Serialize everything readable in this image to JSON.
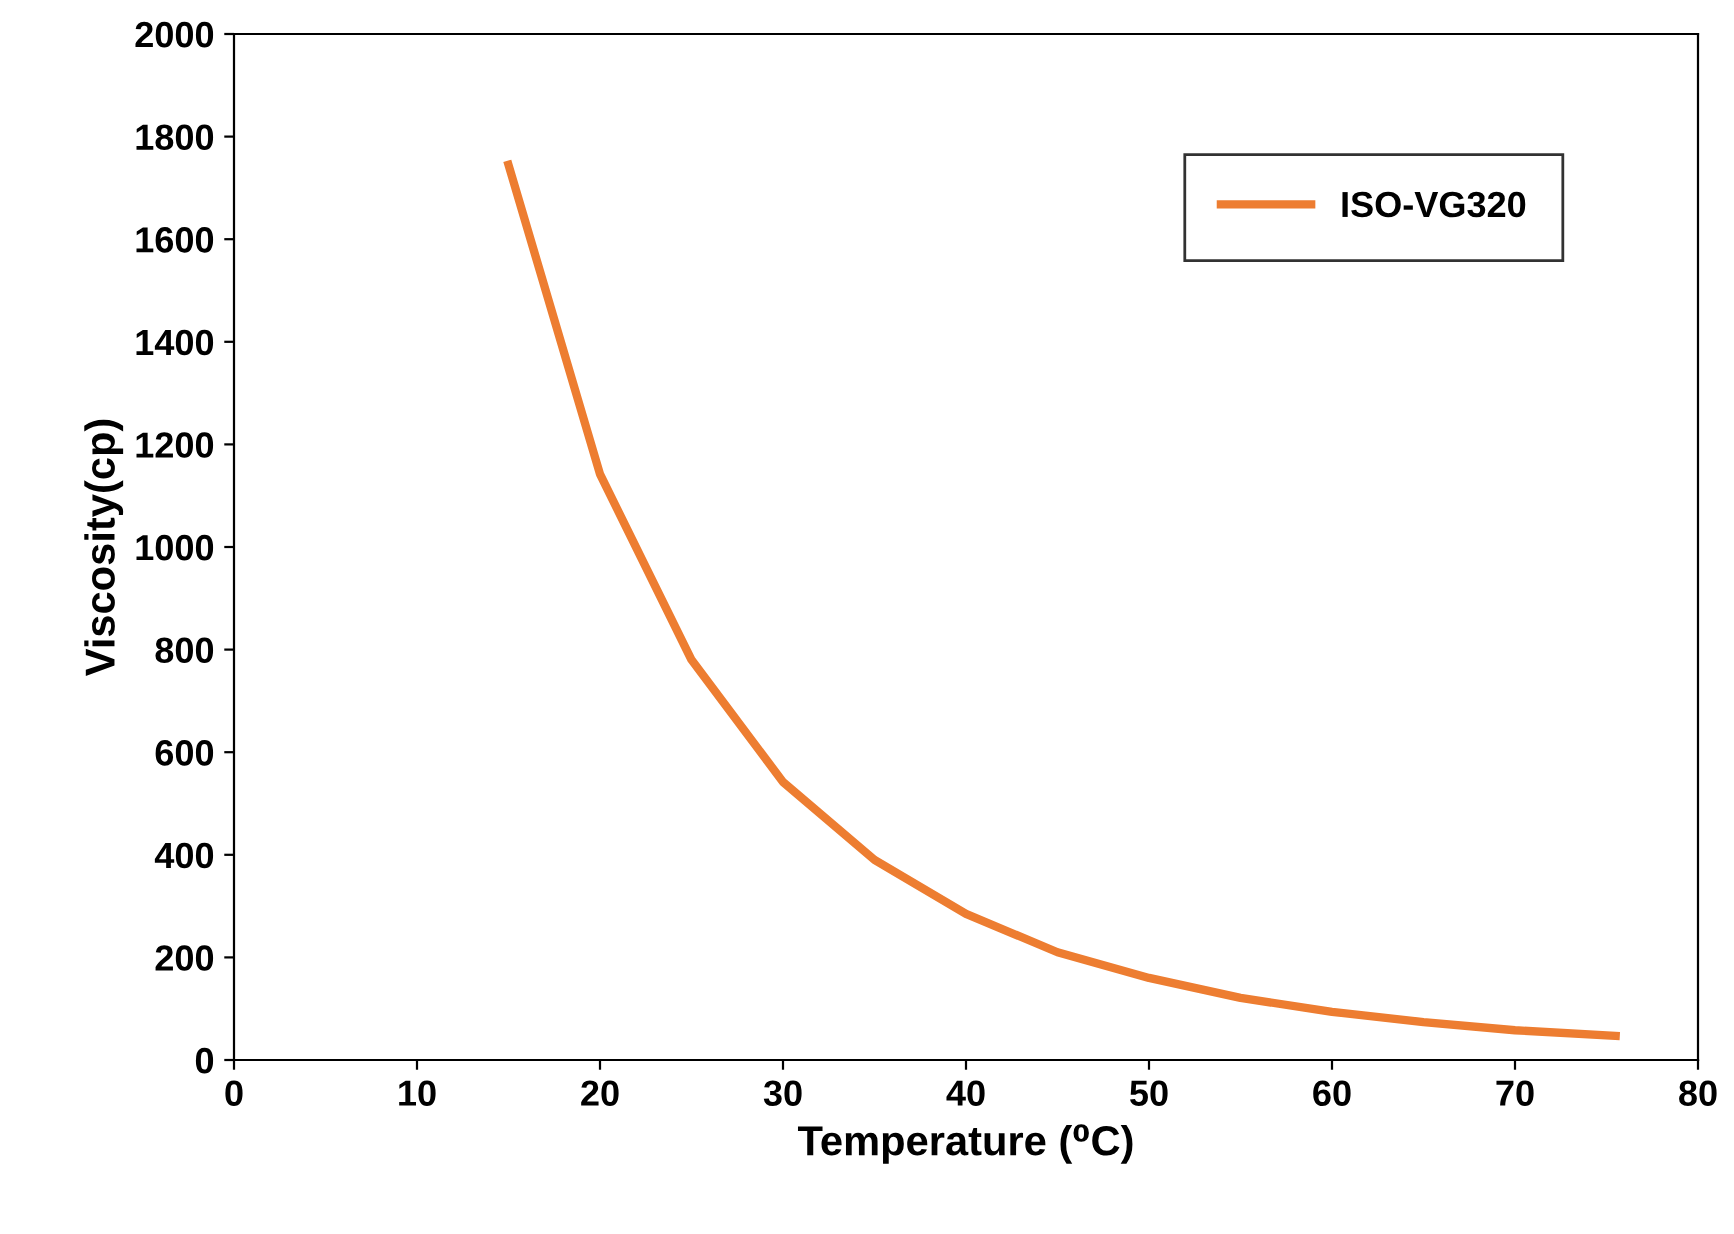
{
  "chart_data": {
    "type": "line",
    "xlabel": "Temperature (⁰C)",
    "ylabel": "Viscosity(cp)",
    "xlim": [
      0,
      80
    ],
    "xticks": [
      0,
      10,
      20,
      30,
      40,
      50,
      60,
      70,
      80
    ],
    "ylim": [
      0,
      2000
    ],
    "yticks": [
      0,
      200,
      400,
      600,
      800,
      1000,
      1200,
      1400,
      1600,
      1800,
      2000
    ],
    "grid": false,
    "legend": "top right",
    "marker": "none",
    "line_style": "solid",
    "series": [
      {
        "name": "ISO-VG320",
        "color": "#ed7d31",
        "x": [
          15,
          20,
          25,
          30,
          35,
          40,
          45,
          50,
          55,
          60,
          65,
          70,
          75.5
        ],
        "values": [
          1745,
          1142,
          780,
          542,
          390,
          285,
          210,
          160,
          121,
          94,
          74,
          58,
          47
        ]
      }
    ]
  }
}
